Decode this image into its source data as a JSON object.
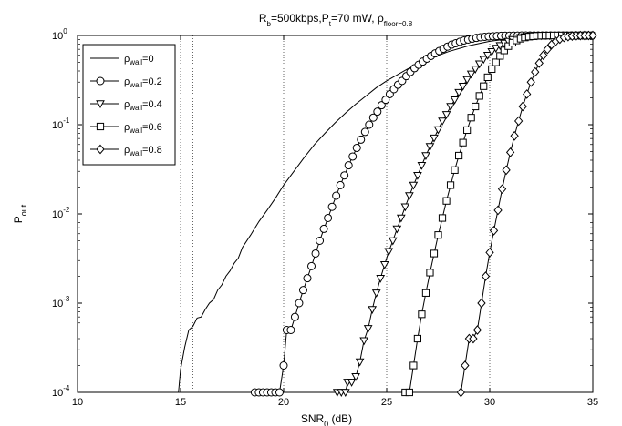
{
  "chart_data": {
    "type": "line",
    "title": {
      "main": "R",
      "sub_b": "b",
      "mid": "=500kbps,P",
      "sub_t": "t",
      "end": "=70 mW, ρ",
      "sub_floor": "floor=0.8"
    },
    "xlabel": {
      "main": "SNR",
      "sub": "0",
      "unit": " (dB)"
    },
    "ylabel": {
      "main": "P",
      "sub": "out"
    },
    "xlim": [
      10,
      35
    ],
    "ylim": [
      0.0001,
      1
    ],
    "yscale": "log",
    "xticks": [
      10,
      15,
      20,
      25,
      30,
      35
    ],
    "yticks": [
      {
        "value": 0.0001,
        "base": "10",
        "exp": "-4"
      },
      {
        "value": 0.001,
        "base": "10",
        "exp": "-3"
      },
      {
        "value": 0.01,
        "base": "10",
        "exp": "-2"
      },
      {
        "value": 0.1,
        "base": "10",
        "exp": "-1"
      },
      {
        "value": 1,
        "base": "10",
        "exp": "0"
      }
    ],
    "grid": {
      "x_lines": [
        15,
        15.6,
        20,
        25,
        30
      ]
    },
    "legend_position": "top-left",
    "series": [
      {
        "name": {
          "rho": "ρ",
          "sub": "wall",
          "val": "=0"
        },
        "marker": "none",
        "points": [
          [
            14.9,
            0.0001
          ],
          [
            15.0,
            0.00018
          ],
          [
            15.2,
            0.00032
          ],
          [
            15.4,
            0.0005
          ],
          [
            15.6,
            0.00055
          ],
          [
            15.8,
            0.00068
          ],
          [
            16.0,
            0.0007
          ],
          [
            16.2,
            0.00085
          ],
          [
            16.4,
            0.001
          ],
          [
            16.6,
            0.0011
          ],
          [
            16.8,
            0.0014
          ],
          [
            17.0,
            0.0016
          ],
          [
            17.2,
            0.002
          ],
          [
            17.4,
            0.0023
          ],
          [
            17.6,
            0.0028
          ],
          [
            17.8,
            0.0032
          ],
          [
            18.0,
            0.0042
          ],
          [
            18.4,
            0.0058
          ],
          [
            18.8,
            0.0082
          ],
          [
            19.2,
            0.011
          ],
          [
            19.6,
            0.015
          ],
          [
            20.0,
            0.021
          ],
          [
            20.5,
            0.03
          ],
          [
            21.0,
            0.043
          ],
          [
            21.5,
            0.06
          ],
          [
            22.0,
            0.08
          ],
          [
            22.5,
            0.105
          ],
          [
            23.0,
            0.135
          ],
          [
            23.5,
            0.17
          ],
          [
            24.0,
            0.21
          ],
          [
            24.5,
            0.26
          ],
          [
            25.0,
            0.31
          ],
          [
            26.0,
            0.42
          ],
          [
            27.0,
            0.54
          ],
          [
            28.0,
            0.66
          ],
          [
            29.0,
            0.77
          ],
          [
            30.0,
            0.86
          ],
          [
            31.0,
            0.92
          ],
          [
            32.0,
            0.96
          ],
          [
            33.0,
            0.98
          ],
          [
            34.0,
            0.99
          ],
          [
            35.0,
            1.0
          ]
        ]
      },
      {
        "name": {
          "rho": "ρ",
          "sub": "wall",
          "val": "=0.2"
        },
        "marker": "circle",
        "points": [
          [
            18.6,
            0.0001
          ],
          [
            18.8,
            0.0001
          ],
          [
            19.0,
            0.0001
          ],
          [
            19.2,
            0.0001
          ],
          [
            19.4,
            0.0001
          ],
          [
            19.6,
            0.0001
          ],
          [
            19.8,
            0.0001
          ],
          [
            20.0,
            0.0002
          ],
          [
            20.15,
            0.0005
          ],
          [
            20.35,
            0.0005
          ],
          [
            20.55,
            0.0007
          ],
          [
            20.75,
            0.001
          ],
          [
            20.95,
            0.0014
          ],
          [
            21.15,
            0.0019
          ],
          [
            21.35,
            0.0026
          ],
          [
            21.55,
            0.0036
          ],
          [
            21.75,
            0.005
          ],
          [
            21.95,
            0.0068
          ],
          [
            22.15,
            0.009
          ],
          [
            22.35,
            0.012
          ],
          [
            22.55,
            0.016
          ],
          [
            22.75,
            0.021
          ],
          [
            22.95,
            0.027
          ],
          [
            23.15,
            0.035
          ],
          [
            23.35,
            0.044
          ],
          [
            23.55,
            0.055
          ],
          [
            23.75,
            0.068
          ],
          [
            23.95,
            0.083
          ],
          [
            24.15,
            0.1
          ],
          [
            24.35,
            0.12
          ],
          [
            24.55,
            0.14
          ],
          [
            24.75,
            0.165
          ],
          [
            24.95,
            0.19
          ],
          [
            25.15,
            0.22
          ],
          [
            25.35,
            0.25
          ],
          [
            25.55,
            0.28
          ],
          [
            25.75,
            0.31
          ],
          [
            25.95,
            0.35
          ],
          [
            26.15,
            0.39
          ],
          [
            26.35,
            0.43
          ],
          [
            26.55,
            0.47
          ],
          [
            26.75,
            0.51
          ],
          [
            26.95,
            0.55
          ],
          [
            27.15,
            0.59
          ],
          [
            27.35,
            0.63
          ],
          [
            27.55,
            0.67
          ],
          [
            27.75,
            0.71
          ],
          [
            27.95,
            0.75
          ],
          [
            28.15,
            0.79
          ],
          [
            28.35,
            0.82
          ],
          [
            28.55,
            0.85
          ],
          [
            28.75,
            0.88
          ],
          [
            28.95,
            0.9
          ],
          [
            29.15,
            0.92
          ],
          [
            29.35,
            0.94
          ],
          [
            29.55,
            0.955
          ],
          [
            29.75,
            0.965
          ],
          [
            29.95,
            0.975
          ],
          [
            30.15,
            0.98
          ],
          [
            30.35,
            0.985
          ],
          [
            30.55,
            0.99
          ],
          [
            30.75,
            0.993
          ],
          [
            30.95,
            0.995
          ],
          [
            31.15,
            0.997
          ],
          [
            31.35,
            0.998
          ],
          [
            31.55,
            0.999
          ],
          [
            31.75,
            1.0
          ],
          [
            31.95,
            1.0
          ],
          [
            32.15,
            1.0
          ],
          [
            32.35,
            1.0
          ],
          [
            32.55,
            1.0
          ],
          [
            32.75,
            1.0
          ],
          [
            32.95,
            1.0
          ],
          [
            33.15,
            1.0
          ],
          [
            33.35,
            1.0
          ],
          [
            33.55,
            1.0
          ],
          [
            33.75,
            1.0
          ],
          [
            33.95,
            1.0
          ],
          [
            34.15,
            1.0
          ],
          [
            34.35,
            1.0
          ],
          [
            34.55,
            1.0
          ],
          [
            34.75,
            1.0
          ],
          [
            34.95,
            1.0
          ]
        ]
      },
      {
        "name": {
          "rho": "ρ",
          "sub": "wall",
          "val": "=0.4"
        },
        "marker": "triangle-down",
        "points": [
          [
            22.6,
            0.0001
          ],
          [
            22.8,
            0.0001
          ],
          [
            23.0,
            0.0001
          ],
          [
            23.1,
            0.00013
          ],
          [
            23.3,
            0.00013
          ],
          [
            23.5,
            0.00015
          ],
          [
            23.7,
            0.00022
          ],
          [
            23.9,
            0.00038
          ],
          [
            24.1,
            0.00052
          ],
          [
            24.3,
            0.00085
          ],
          [
            24.5,
            0.0013
          ],
          [
            24.7,
            0.0019
          ],
          [
            24.9,
            0.0027
          ],
          [
            25.1,
            0.0038
          ],
          [
            25.3,
            0.005
          ],
          [
            25.5,
            0.0068
          ],
          [
            25.7,
            0.009
          ],
          [
            25.9,
            0.012
          ],
          [
            26.1,
            0.016
          ],
          [
            26.3,
            0.021
          ],
          [
            26.5,
            0.027
          ],
          [
            26.7,
            0.035
          ],
          [
            26.9,
            0.045
          ],
          [
            27.1,
            0.057
          ],
          [
            27.3,
            0.071
          ],
          [
            27.5,
            0.088
          ],
          [
            27.7,
            0.11
          ],
          [
            27.9,
            0.13
          ],
          [
            28.1,
            0.16
          ],
          [
            28.3,
            0.19
          ],
          [
            28.5,
            0.23
          ],
          [
            28.7,
            0.27
          ],
          [
            28.9,
            0.32
          ],
          [
            29.1,
            0.37
          ],
          [
            29.3,
            0.42
          ],
          [
            29.5,
            0.48
          ],
          [
            29.7,
            0.54
          ],
          [
            29.9,
            0.6
          ],
          [
            30.1,
            0.66
          ],
          [
            30.3,
            0.72
          ],
          [
            30.5,
            0.77
          ],
          [
            30.7,
            0.82
          ],
          [
            30.9,
            0.86
          ],
          [
            31.1,
            0.9
          ],
          [
            31.3,
            0.93
          ],
          [
            31.5,
            0.95
          ],
          [
            31.7,
            0.97
          ],
          [
            31.9,
            0.98
          ],
          [
            32.1,
            0.99
          ],
          [
            32.3,
            0.993
          ],
          [
            32.5,
            0.996
          ],
          [
            32.7,
            0.998
          ],
          [
            32.9,
            0.999
          ],
          [
            33.1,
            1.0
          ],
          [
            33.3,
            1.0
          ],
          [
            33.5,
            1.0
          ],
          [
            33.7,
            1.0
          ],
          [
            33.9,
            1.0
          ],
          [
            34.1,
            1.0
          ],
          [
            34.3,
            1.0
          ],
          [
            34.5,
            1.0
          ],
          [
            34.7,
            1.0
          ],
          [
            34.9,
            1.0
          ]
        ]
      },
      {
        "name": {
          "rho": "ρ",
          "sub": "wall",
          "val": "=0.6"
        },
        "marker": "square",
        "points": [
          [
            25.9,
            0.0001
          ],
          [
            26.1,
            0.0001
          ],
          [
            26.3,
            0.0002
          ],
          [
            26.5,
            0.0004
          ],
          [
            26.7,
            0.00075
          ],
          [
            26.9,
            0.0013
          ],
          [
            27.1,
            0.0022
          ],
          [
            27.3,
            0.0036
          ],
          [
            27.5,
            0.0058
          ],
          [
            27.7,
            0.009
          ],
          [
            27.9,
            0.014
          ],
          [
            28.1,
            0.021
          ],
          [
            28.3,
            0.031
          ],
          [
            28.5,
            0.045
          ],
          [
            28.7,
            0.063
          ],
          [
            28.9,
            0.087
          ],
          [
            29.1,
            0.12
          ],
          [
            29.3,
            0.16
          ],
          [
            29.5,
            0.21
          ],
          [
            29.7,
            0.27
          ],
          [
            29.9,
            0.34
          ],
          [
            30.1,
            0.42
          ],
          [
            30.3,
            0.5
          ],
          [
            30.5,
            0.59
          ],
          [
            30.7,
            0.68
          ],
          [
            30.9,
            0.76
          ],
          [
            31.1,
            0.83
          ],
          [
            31.3,
            0.88
          ],
          [
            31.5,
            0.92
          ],
          [
            31.7,
            0.95
          ],
          [
            31.9,
            0.97
          ],
          [
            32.1,
            0.98
          ],
          [
            32.3,
            0.99
          ],
          [
            32.5,
            0.995
          ],
          [
            32.7,
            0.998
          ],
          [
            32.9,
            0.999
          ],
          [
            33.1,
            1.0
          ],
          [
            33.3,
            1.0
          ],
          [
            33.5,
            1.0
          ],
          [
            33.7,
            1.0
          ],
          [
            33.9,
            1.0
          ],
          [
            34.1,
            1.0
          ],
          [
            34.3,
            1.0
          ],
          [
            34.5,
            1.0
          ],
          [
            34.7,
            1.0
          ],
          [
            34.9,
            1.0
          ]
        ]
      },
      {
        "name": {
          "rho": "ρ",
          "sub": "wall",
          "val": "=0.8"
        },
        "marker": "diamond",
        "points": [
          [
            28.6,
            0.0001
          ],
          [
            28.8,
            0.0002
          ],
          [
            29.0,
            0.0004
          ],
          [
            29.2,
            0.0004
          ],
          [
            29.4,
            0.0005
          ],
          [
            29.6,
            0.001
          ],
          [
            29.8,
            0.002
          ],
          [
            30.0,
            0.0037
          ],
          [
            30.2,
            0.0065
          ],
          [
            30.4,
            0.011
          ],
          [
            30.6,
            0.019
          ],
          [
            30.8,
            0.031
          ],
          [
            31.0,
            0.049
          ],
          [
            31.2,
            0.075
          ],
          [
            31.4,
            0.11
          ],
          [
            31.6,
            0.16
          ],
          [
            31.8,
            0.22
          ],
          [
            32.0,
            0.3
          ],
          [
            32.2,
            0.39
          ],
          [
            32.4,
            0.49
          ],
          [
            32.6,
            0.6
          ],
          [
            32.8,
            0.7
          ],
          [
            33.0,
            0.79
          ],
          [
            33.2,
            0.86
          ],
          [
            33.4,
            0.91
          ],
          [
            33.6,
            0.95
          ],
          [
            33.8,
            0.97
          ],
          [
            34.0,
            0.985
          ],
          [
            34.2,
            0.993
          ],
          [
            34.4,
            0.997
          ],
          [
            34.6,
            0.999
          ],
          [
            34.8,
            1.0
          ],
          [
            35.0,
            1.0
          ]
        ]
      }
    ]
  }
}
